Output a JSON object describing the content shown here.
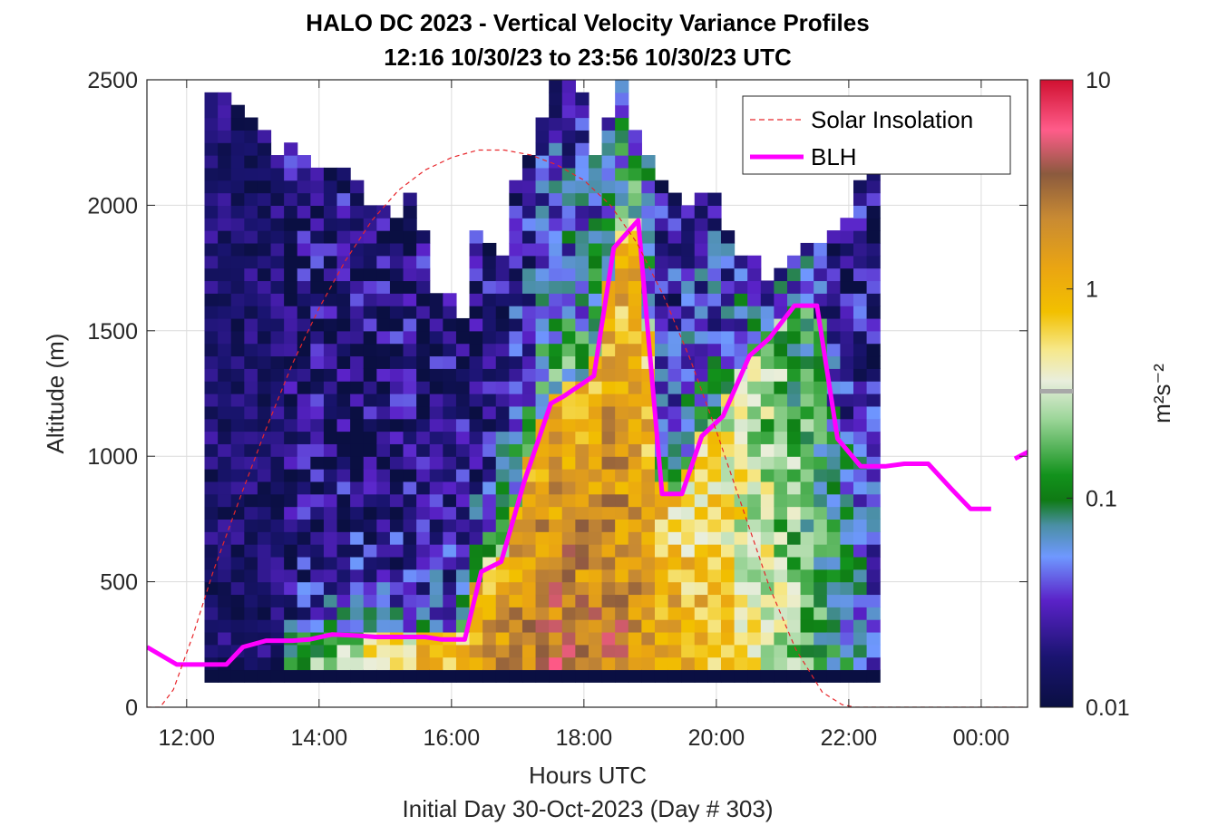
{
  "chart_data": {
    "type": "heatmap",
    "title": "HALO DC 2023 - Vertical Velocity Variance Profiles",
    "subtitle": "12:16 10/30/23 to 23:56 10/30/23  UTC",
    "xlabel": "Hours UTC",
    "xlabel2": "Initial Day 30-Oct-2023 (Day # 303)",
    "ylabel": "Altitude (m)",
    "colorbar_label": "m²s⁻²",
    "xlim_hours": [
      11.4,
      24.7
    ],
    "ylim": [
      0,
      2500
    ],
    "x_ticks": [
      {
        "hour": 12,
        "label": "12:00"
      },
      {
        "hour": 14,
        "label": "14:00"
      },
      {
        "hour": 16,
        "label": "16:00"
      },
      {
        "hour": 18,
        "label": "18:00"
      },
      {
        "hour": 20,
        "label": "20:00"
      },
      {
        "hour": 22,
        "label": "22:00"
      },
      {
        "hour": 24,
        "label": "00:00"
      }
    ],
    "y_ticks": [
      0,
      500,
      1000,
      1500,
      2000,
      2500
    ],
    "colorbar": {
      "scale": "log",
      "min": 0.01,
      "max": 10,
      "ticks": [
        "0.01",
        "0.1",
        "1",
        "10"
      ]
    },
    "grid": true,
    "legend": {
      "placement": "top-right",
      "entries": [
        {
          "label": "Solar Insolation",
          "color": "#e8262b",
          "style": "dashed"
        },
        {
          "label": "BLH",
          "color": "#ff00ff",
          "style": "solid"
        }
      ]
    },
    "heatmap": {
      "time_start_hour": 12.27,
      "time_step_hours": 0.2,
      "altitude_start_m": 100,
      "altitude_step_m": 50,
      "profile_top_m": [
        2450,
        2450,
        2400,
        2350,
        2300,
        2200,
        2250,
        2200,
        2150,
        2150,
        2150,
        2100,
        2000,
        2000,
        1950,
        2050,
        1900,
        1650,
        1650,
        1550,
        1900,
        1850,
        1800,
        2100,
        2200,
        2350,
        2500,
        2500,
        2450,
        2200,
        2350,
        2500,
        2300,
        2200,
        2100,
        2050,
        2000,
        2050,
        2050,
        1900,
        1800,
        1800,
        1700,
        1750,
        1800,
        1850,
        1850,
        1900,
        1950,
        2100,
        2150
      ]
    },
    "series": [
      {
        "name": "BLH",
        "color": "#ff00ff",
        "x_hours": [
          11.4,
          11.85,
          12.27,
          12.6,
          12.85,
          13.2,
          13.6,
          13.85,
          14.2,
          14.6,
          14.85,
          15.2,
          15.6,
          15.85,
          16.2,
          16.45,
          16.75,
          17.1,
          17.5,
          17.7,
          18.15,
          18.45,
          18.82,
          19.18,
          19.48,
          19.78,
          20.1,
          20.5,
          20.8,
          21.18,
          21.52,
          21.83,
          22.18,
          22.55,
          22.84,
          23.2,
          23.55,
          23.84,
          24.15
        ],
        "y_m": [
          240,
          170,
          170,
          170,
          240,
          265,
          265,
          270,
          290,
          285,
          280,
          280,
          280,
          270,
          270,
          540,
          580,
          900,
          1210,
          1240,
          1320,
          1830,
          1940,
          850,
          850,
          1080,
          1160,
          1400,
          1470,
          1600,
          1600,
          1070,
          960,
          960,
          970,
          970,
          870,
          790,
          790
        ]
      },
      {
        "name": "Solar Insolation",
        "color": "#e8262b",
        "x_hours": [
          11.4,
          11.6,
          11.8,
          12.1,
          12.4,
          12.8,
          13.2,
          13.6,
          14.0,
          14.4,
          14.8,
          15.2,
          15.6,
          16.0,
          16.4,
          16.8,
          17.2,
          17.6,
          18.0,
          18.4,
          18.8,
          19.2,
          19.6,
          20.0,
          20.4,
          20.8,
          21.2,
          21.6,
          21.9,
          22.1,
          22.4,
          24.7
        ],
        "y_m": [
          0,
          0,
          70,
          290,
          540,
          830,
          1110,
          1370,
          1590,
          1780,
          1940,
          2060,
          2140,
          2190,
          2220,
          2220,
          2200,
          2160,
          2100,
          2000,
          1850,
          1640,
          1390,
          1100,
          790,
          480,
          230,
          60,
          10,
          0,
          0,
          0
        ]
      }
    ]
  }
}
